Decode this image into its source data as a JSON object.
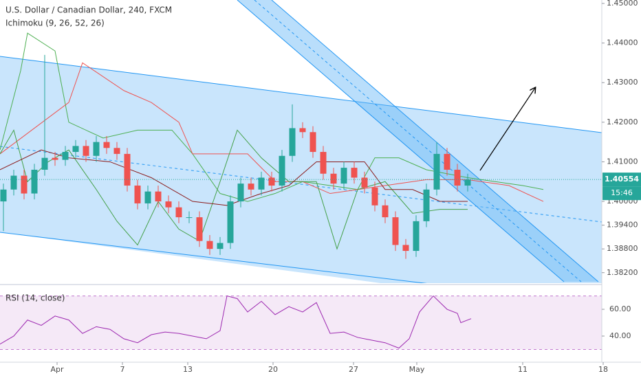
{
  "chart_data": [
    {
      "type": "candlestick",
      "title": "U.S. Dollar / Canadian Dollar, 240, FXCM",
      "subtitle": "Ichimoku (9, 26, 52, 26)",
      "x": [
        1,
        4,
        7,
        10,
        13,
        16,
        19,
        22,
        25,
        28,
        31,
        34,
        37,
        40,
        43,
        46,
        49,
        52,
        55,
        58,
        61,
        64,
        67,
        70,
        73,
        76,
        79,
        82,
        85,
        88,
        91,
        94,
        97,
        100,
        103,
        106,
        109,
        112,
        115,
        118,
        121,
        124,
        127,
        130,
        133,
        136
      ],
      "open": [
        1.4,
        1.403,
        1.4065,
        1.402,
        1.408,
        1.411,
        1.4105,
        1.4125,
        1.414,
        1.4115,
        1.415,
        1.4135,
        1.412,
        1.404,
        1.3995,
        1.4025,
        1.4,
        1.3985,
        1.396,
        1.396,
        1.39,
        1.388,
        1.3895,
        1.4,
        1.4045,
        1.403,
        1.406,
        1.404,
        1.4115,
        1.4185,
        1.4175,
        1.4125,
        1.407,
        1.4045,
        1.4085,
        1.406,
        1.4035,
        1.399,
        1.396,
        1.389,
        1.3875,
        1.395,
        1.403,
        1.412,
        1.408,
        1.404
      ],
      "high": [
        1.4045,
        1.408,
        1.408,
        1.4095,
        1.437,
        1.4125,
        1.414,
        1.4155,
        1.4155,
        1.4165,
        1.4165,
        1.415,
        1.4135,
        1.4055,
        1.404,
        1.404,
        1.4015,
        1.4,
        1.3975,
        1.3975,
        1.3915,
        1.391,
        1.4015,
        1.406,
        1.406,
        1.4075,
        1.4075,
        1.413,
        1.4245,
        1.42,
        1.419,
        1.414,
        1.4085,
        1.41,
        1.41,
        1.4075,
        1.405,
        1.4005,
        1.3975,
        1.3905,
        1.3965,
        1.4045,
        1.415,
        1.4135,
        1.4095,
        1.407
      ],
      "low": [
        1.3925,
        1.4015,
        1.4005,
        1.4005,
        1.4065,
        1.409,
        1.409,
        1.411,
        1.41,
        1.41,
        1.412,
        1.4105,
        1.4025,
        1.398,
        1.398,
        1.3985,
        1.397,
        1.3945,
        1.3945,
        1.3885,
        1.3865,
        1.3865,
        1.388,
        1.3985,
        1.4015,
        1.4015,
        1.4025,
        1.4025,
        1.41,
        1.416,
        1.411,
        1.4055,
        1.403,
        1.403,
        1.4045,
        1.402,
        1.3975,
        1.3945,
        1.3875,
        1.3855,
        1.386,
        1.3935,
        1.4015,
        1.4065,
        1.4025,
        1.4025
      ],
      "close": [
        1.403,
        1.4065,
        1.402,
        1.408,
        1.411,
        1.4105,
        1.4125,
        1.414,
        1.4115,
        1.415,
        1.4135,
        1.412,
        1.404,
        1.3995,
        1.4025,
        1.4,
        1.3985,
        1.396,
        1.396,
        1.39,
        1.388,
        1.3895,
        1.4,
        1.4045,
        1.403,
        1.406,
        1.404,
        1.4115,
        1.4185,
        1.4175,
        1.4125,
        1.407,
        1.4045,
        1.4085,
        1.406,
        1.4035,
        1.399,
        1.396,
        1.389,
        1.3875,
        1.395,
        1.403,
        1.412,
        1.408,
        1.404,
        1.4055
      ],
      "up_color": "#26a69a",
      "down_color": "#ef5350",
      "series": [
        {
          "color": "#4caf50",
          "x": [
            0,
            6,
            8,
            16,
            20,
            30,
            40,
            50,
            56,
            64,
            72,
            80,
            88,
            96,
            104,
            109,
            116,
            124,
            136,
            152,
            158
          ],
          "values": [
            1.413,
            1.433,
            1.4425,
            1.438,
            1.42,
            1.416,
            1.418,
            1.418,
            1.412,
            1.402,
            1.4,
            1.402,
            1.405,
            1.404,
            1.403,
            1.411,
            1.411,
            1.408,
            1.406,
            1.404,
            1.403
          ]
        },
        {
          "color": "#ef5350",
          "x": [
            0,
            20,
            24,
            36,
            44,
            52,
            56,
            72,
            80,
            88,
            96,
            104,
            112,
            124,
            136,
            148,
            158
          ],
          "values": [
            1.412,
            1.425,
            1.435,
            1.428,
            1.425,
            1.42,
            1.412,
            1.412,
            1.405,
            1.405,
            1.402,
            1.403,
            1.404,
            1.4055,
            1.4055,
            1.404,
            1.4
          ]
        },
        {
          "color": "#43a047",
          "x": [
            0,
            4,
            8,
            14,
            20,
            28,
            34,
            40,
            46,
            52,
            58,
            64,
            69,
            76,
            84,
            92,
            98,
            104,
            112,
            120,
            128,
            136
          ],
          "values": [
            1.412,
            1.418,
            1.405,
            1.41,
            1.413,
            1.403,
            1.395,
            1.389,
            1.4,
            1.393,
            1.39,
            1.405,
            1.418,
            1.411,
            1.405,
            1.405,
            1.388,
            1.403,
            1.405,
            1.397,
            1.398,
            1.398
          ]
        },
        {
          "color": "#8b1a1a",
          "x": [
            0,
            12,
            20,
            32,
            44,
            56,
            66,
            76,
            84,
            92,
            106,
            112,
            120,
            128,
            136
          ],
          "values": [
            1.408,
            1.413,
            1.411,
            1.41,
            1.406,
            1.4,
            1.399,
            1.402,
            1.404,
            1.41,
            1.41,
            1.403,
            1.403,
            1.4,
            1.4
          ]
        }
      ],
      "last_price": 1.40554,
      "countdown": "15:46",
      "last_color": "#26a69a",
      "xlim": [
        0,
        176
      ],
      "xticks": [
        {
          "value": 16.6,
          "label": "Apr"
        },
        {
          "value": 35.6,
          "label": "7"
        },
        {
          "value": 54.6,
          "label": "13"
        },
        {
          "value": 79.4,
          "label": "20"
        },
        {
          "value": 102.8,
          "label": "27"
        },
        {
          "value": 121.2,
          "label": "May"
        },
        {
          "value": 152,
          "label": "11"
        },
        {
          "value": 175.4,
          "label": "18"
        }
      ],
      "ylim": [
        1.3797,
        1.45087
      ],
      "yticks": [
        {
          "value": 1.45,
          "label": "1.45000"
        },
        {
          "value": 1.44,
          "label": "1.44000"
        },
        {
          "value": 1.43,
          "label": "1.43000"
        },
        {
          "value": 1.42,
          "label": "1.42000"
        },
        {
          "value": 1.41,
          "label": "1.41000"
        },
        {
          "value": 1.4,
          "label": "1.40000"
        },
        {
          "value": 1.394,
          "label": "1.39400"
        },
        {
          "value": 1.388,
          "label": "1.38800"
        },
        {
          "value": 1.382,
          "label": "1.38200"
        }
      ]
    },
    {
      "type": "line",
      "title": "RSI (14, close)",
      "x": [
        0,
        4,
        8,
        12,
        16,
        20,
        24,
        28,
        32,
        36,
        40,
        44,
        48,
        52,
        56,
        60,
        64,
        66,
        69,
        72,
        76,
        80,
        84,
        88,
        92,
        96,
        100,
        104,
        108,
        112,
        116,
        119,
        122,
        126,
        130,
        133,
        134,
        137
      ],
      "values": [
        34,
        40,
        52,
        48,
        55,
        52,
        42,
        47,
        45,
        38,
        35,
        41,
        43,
        42,
        40,
        38,
        44,
        70,
        68,
        58,
        66,
        56,
        62,
        58,
        65,
        42,
        43,
        39,
        37,
        35,
        31,
        38,
        58,
        70,
        60,
        57,
        50,
        53
      ],
      "color": "#9c27b0",
      "bands": [
        30,
        70
      ],
      "band_color": "#9c27b0",
      "xlim": [
        0,
        176
      ],
      "ylim": [
        21.5,
        78
      ],
      "yticks": [
        {
          "value": 60,
          "label": "60.00"
        },
        {
          "value": 40,
          "label": "40.00"
        }
      ]
    }
  ]
}
